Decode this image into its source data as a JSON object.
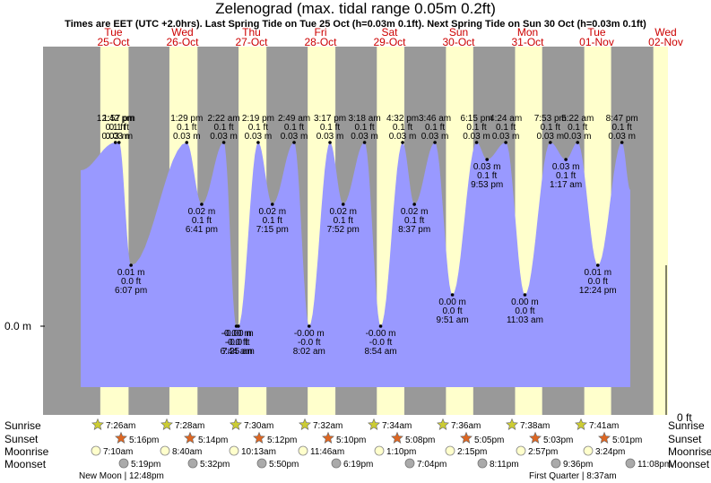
{
  "title": "Zelenograd (max. tidal range 0.05m 0.2ft)",
  "subtitle": "Times are EET (UTC +2.0hrs). Last Spring Tide on Tue 25 Oct (h=0.03m 0.1ft). Next Spring Tide on Sun 30 Oct (h=0.03m 0.1ft)",
  "colors": {
    "night": "#999999",
    "day": "#ffffcc",
    "water": "#9999ff",
    "day_label": "#cc0000",
    "star_rise": "#cccc33",
    "star_set": "#dd6622",
    "moon_rise": "#ffffcc",
    "moon_set": "#aaaaaa"
  },
  "left_axis_label": "0.0 m",
  "right_axis_label": "0 ft",
  "days": [
    {
      "name": "Tue",
      "date": "25-Oct"
    },
    {
      "name": "Wed",
      "date": "26-Oct"
    },
    {
      "name": "Thu",
      "date": "27-Oct"
    },
    {
      "name": "Fri",
      "date": "28-Oct"
    },
    {
      "name": "Sat",
      "date": "29-Oct"
    },
    {
      "name": "Sun",
      "date": "30-Oct"
    },
    {
      "name": "Mon",
      "date": "31-Oct"
    },
    {
      "name": "Tue",
      "date": "01-Nov"
    },
    {
      "name": "Wed",
      "date": "02-Nov"
    }
  ],
  "chart_data": {
    "type": "area",
    "y_unit": "m",
    "ylim": [
      0.0,
      0.03
    ],
    "tides": [
      {
        "day": 0,
        "time": "12:42 pm",
        "h_m": "0.03 m",
        "h_ft": "0.1 ft",
        "value": 0.03,
        "kind": "high"
      },
      {
        "day": 0,
        "time": "1:57 pm",
        "h_m": "0.03 m",
        "h_ft": "0.1 ft",
        "value": 0.03,
        "kind": "high"
      },
      {
        "day": 0,
        "time": "6:07 pm",
        "h_m": "0.01 m",
        "h_ft": "0.0 ft",
        "value": 0.01,
        "kind": "low"
      },
      {
        "day": 1,
        "time": "6:44 am",
        "h_m": "-0.00 m",
        "h_ft": "-0.0 ft",
        "value": 0.0,
        "kind": "low"
      },
      {
        "day": 1,
        "time": "1:29 pm",
        "h_m": "0.03 m",
        "h_ft": "0.1 ft",
        "value": 0.03,
        "kind": "high"
      },
      {
        "day": 1,
        "time": "6:41 pm",
        "h_m": "0.02 m",
        "h_ft": "0.1 ft",
        "value": 0.02,
        "kind": "low"
      },
      {
        "day": 1,
        "time": "2:22 am",
        "h_m": "0.03 m",
        "h_ft": "0.1 ft",
        "value": 0.03,
        "kind": "high"
      },
      {
        "day": 2,
        "time": "7:25 am",
        "h_m": "-0.00 m",
        "h_ft": "-0.0 ft",
        "value": 0.0,
        "kind": "low"
      },
      {
        "day": 2,
        "time": "2:19 pm",
        "h_m": "0.03 m",
        "h_ft": "0.1 ft",
        "value": 0.03,
        "kind": "high"
      },
      {
        "day": 2,
        "time": "7:15 pm",
        "h_m": "0.02 m",
        "h_ft": "0.1 ft",
        "value": 0.02,
        "kind": "low"
      },
      {
        "day": 2,
        "time": "2:49 am",
        "h_m": "0.03 m",
        "h_ft": "0.1 ft",
        "value": 0.03,
        "kind": "high"
      },
      {
        "day": 3,
        "time": "8:02 am",
        "h_m": "-0.00 m",
        "h_ft": "-0.0 ft",
        "value": 0.0,
        "kind": "low"
      },
      {
        "day": 3,
        "time": "3:17 pm",
        "h_m": "0.03 m",
        "h_ft": "0.1 ft",
        "value": 0.03,
        "kind": "high"
      },
      {
        "day": 3,
        "time": "7:52 pm",
        "h_m": "0.02 m",
        "h_ft": "0.1 ft",
        "value": 0.02,
        "kind": "low"
      },
      {
        "day": 3,
        "time": "3:18 am",
        "h_m": "0.03 m",
        "h_ft": "0.1 ft",
        "value": 0.03,
        "kind": "high"
      },
      {
        "day": 4,
        "time": "8:54 am",
        "h_m": "-0.00 m",
        "h_ft": "-0.0 ft",
        "value": 0.0,
        "kind": "low"
      },
      {
        "day": 4,
        "time": "4:32 pm",
        "h_m": "0.03 m",
        "h_ft": "0.1 ft",
        "value": 0.03,
        "kind": "high"
      },
      {
        "day": 4,
        "time": "8:37 pm",
        "h_m": "0.02 m",
        "h_ft": "0.1 ft",
        "value": 0.02,
        "kind": "low"
      },
      {
        "day": 4,
        "time": "3:46 am",
        "h_m": "0.03 m",
        "h_ft": "0.1 ft",
        "value": 0.03,
        "kind": "high"
      },
      {
        "day": 5,
        "time": "9:51 am",
        "h_m": "0.00 m",
        "h_ft": "0.0 ft",
        "value": 0.0,
        "kind": "low"
      },
      {
        "day": 5,
        "time": "6:15 pm",
        "h_m": "0.03 m",
        "h_ft": "0.1 ft",
        "value": 0.03,
        "kind": "high"
      },
      {
        "day": 5,
        "time": "9:53 pm",
        "h_m": "0.03 m",
        "h_ft": "0.1 ft",
        "value": 0.03,
        "kind": "low"
      },
      {
        "day": 5,
        "time": "4:24 am",
        "h_m": "0.03 m",
        "h_ft": "0.1 ft",
        "value": 0.03,
        "kind": "high"
      },
      {
        "day": 6,
        "time": "11:03 am",
        "h_m": "0.00 m",
        "h_ft": "0.0 ft",
        "value": 0.0,
        "kind": "low"
      },
      {
        "day": 6,
        "time": "7:53 pm",
        "h_m": "0.03 m",
        "h_ft": "0.1 ft",
        "value": 0.03,
        "kind": "high"
      },
      {
        "day": 6,
        "time": "1:17 am",
        "h_m": "0.03 m",
        "h_ft": "0.1 ft",
        "value": 0.03,
        "kind": "low"
      },
      {
        "day": 6,
        "time": "5:22 am",
        "h_m": "0.03 m",
        "h_ft": "0.1 ft",
        "value": 0.03,
        "kind": "high"
      },
      {
        "day": 7,
        "time": "12:24 pm",
        "h_m": "0.01 m",
        "h_ft": "0.0 ft",
        "value": 0.01,
        "kind": "low"
      },
      {
        "day": 7,
        "time": "8:47 pm",
        "h_m": "0.03 m",
        "h_ft": "0.1 ft",
        "value": 0.03,
        "kind": "high"
      }
    ]
  },
  "almanac": {
    "row_labels": [
      "Sunrise",
      "Sunset",
      "Moonrise",
      "Moonset"
    ],
    "sunrise": [
      "7:26am",
      "7:28am",
      "7:30am",
      "7:32am",
      "7:34am",
      "7:36am",
      "7:38am",
      "7:41am"
    ],
    "sunset": [
      "5:16pm",
      "5:14pm",
      "5:12pm",
      "5:10pm",
      "5:08pm",
      "5:05pm",
      "5:03pm",
      "5:01pm"
    ],
    "moonrise": [
      "7:10am",
      "8:40am",
      "10:13am",
      "11:46am",
      "1:10pm",
      "2:15pm",
      "2:57pm",
      "3:24pm"
    ],
    "moonset": [
      "5:19pm",
      "5:32pm",
      "5:50pm",
      "6:19pm",
      "7:04pm",
      "8:11pm",
      "9:36pm",
      "11:08pm"
    ],
    "phases": [
      "New Moon | 12:48pm",
      "First Quarter | 8:37am"
    ]
  }
}
